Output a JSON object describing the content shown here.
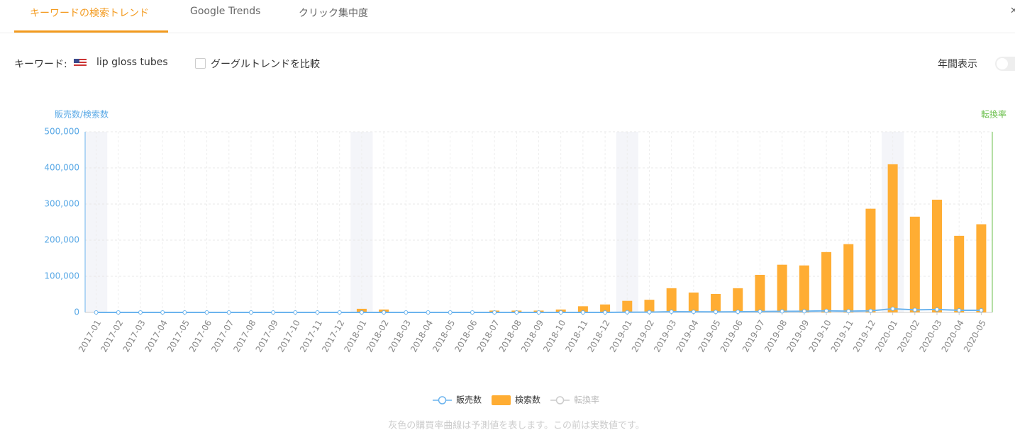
{
  "tabs": [
    "キーワードの検索トレンド",
    "Google Trends",
    "クリック集中度"
  ],
  "keyword_label": "キーワード:",
  "keyword": "lip gloss tubes",
  "compare_label": "グーグルトレンドを比較",
  "yearly_label": "年間表示",
  "chart_data": {
    "type": "bar",
    "y_axis_label": "販売数/検索数",
    "y2_axis_label": "転換率",
    "categories": [
      "2017-01",
      "2017-02",
      "2017-03",
      "2017-04",
      "2017-05",
      "2017-06",
      "2017-07",
      "2017-08",
      "2017-09",
      "2017-10",
      "2017-11",
      "2017-12",
      "2018-01",
      "2018-02",
      "2018-03",
      "2018-04",
      "2018-05",
      "2018-06",
      "2018-07",
      "2018-08",
      "2018-09",
      "2018-10",
      "2018-11",
      "2018-12",
      "2019-01",
      "2019-02",
      "2019-03",
      "2019-04",
      "2019-05",
      "2019-06",
      "2019-07",
      "2019-08",
      "2019-09",
      "2019-10",
      "2019-11",
      "2019-12",
      "2020-01",
      "2020-02",
      "2020-03",
      "2020-04",
      "2020-05"
    ],
    "series": [
      {
        "name": "販売数",
        "type": "line",
        "color": "#6cb4ee",
        "values": [
          0,
          0,
          0,
          0,
          0,
          0,
          0,
          0,
          0,
          0,
          0,
          0,
          0,
          0,
          0,
          0,
          0,
          0,
          0,
          0,
          0,
          0,
          0,
          0,
          500,
          800,
          2000,
          1800,
          1500,
          1800,
          2500,
          3000,
          3200,
          4500,
          3500,
          4500,
          10000,
          7000,
          8000,
          6000,
          6000
        ]
      },
      {
        "name": "検索数",
        "type": "bar",
        "color": "#ffad33",
        "values": [
          0,
          0,
          0,
          0,
          0,
          0,
          0,
          0,
          0,
          0,
          0,
          0,
          10000,
          8000,
          0,
          0,
          0,
          0,
          5000,
          5000,
          5000,
          8000,
          17000,
          22000,
          32000,
          35000,
          67000,
          55000,
          51000,
          67000,
          104000,
          132000,
          130000,
          167000,
          189000,
          287000,
          410000,
          265000,
          312000,
          212000,
          244000
        ]
      },
      {
        "name": "転換率",
        "type": "line",
        "axis": "y2",
        "color": "#cccccc",
        "values": [
          null,
          null,
          null,
          null,
          null,
          null,
          null,
          null,
          null,
          null,
          null,
          null,
          null,
          null,
          null,
          null,
          null,
          null,
          null,
          null,
          null,
          null,
          null,
          null,
          null,
          null,
          null,
          null,
          null,
          null,
          null,
          null,
          null,
          null,
          null,
          null,
          null,
          null,
          null,
          null,
          null
        ]
      }
    ],
    "ylim": [
      0,
      500000
    ],
    "yticks": [
      0,
      {
        "value": 100000,
        "label": "100,000"
      },
      {
        "value": 200000,
        "label": "200,000"
      },
      {
        "value": 300000,
        "label": "300,000"
      },
      {
        "value": 400000,
        "label": "400,000"
      },
      {
        "value": 500000,
        "label": "500,000"
      }
    ],
    "grid": true,
    "note": "灰色の購買率曲線は予測値を表します。この前は実数値です。"
  }
}
